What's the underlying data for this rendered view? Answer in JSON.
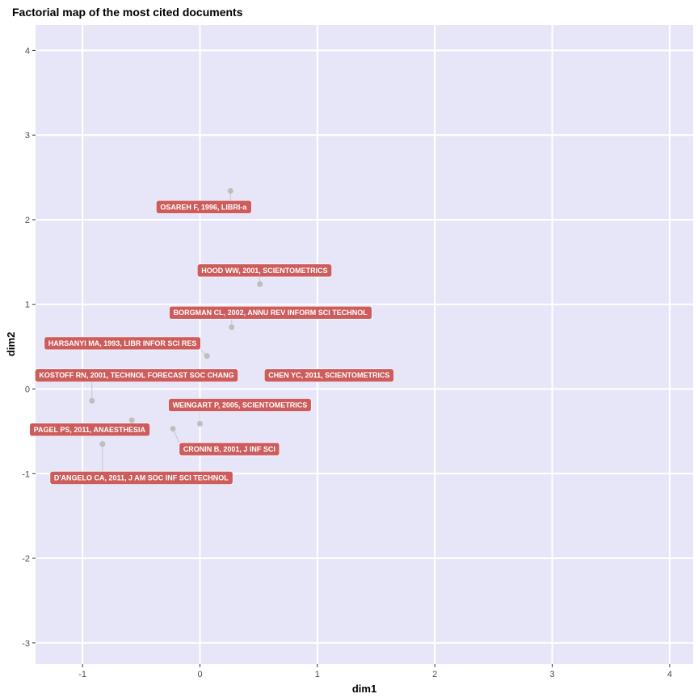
{
  "chart_data": {
    "type": "scatter",
    "title": "Factorial map of the most cited documents",
    "xlabel": "dim1",
    "ylabel": "dim2",
    "xlim": [
      -1.4,
      4.2
    ],
    "ylim": [
      -3.25,
      4.3
    ],
    "x_ticks": [
      -1,
      0,
      1,
      2,
      3,
      4
    ],
    "y_ticks": [
      -3,
      -2,
      -1,
      0,
      1,
      2,
      3,
      4
    ],
    "grid": true,
    "colors": {
      "panel": "#E6E6F8",
      "grid_major": "#FFFFFF",
      "point": "#BEBEBE",
      "label_bg": "#CD5C5C",
      "label_text": "#FFFFFF",
      "connector": "#C8C8C8"
    },
    "points": [
      {
        "label": "OSAREH F, 1996, LIBRI-a",
        "x": 0.26,
        "y": 2.34,
        "lx": 0.03,
        "ly": 2.15
      },
      {
        "label": "HOOD WW, 2001, SCIENTOMETRICS",
        "x": 0.51,
        "y": 1.24,
        "lx": 0.55,
        "ly": 1.4
      },
      {
        "label": "BORGMAN CL, 2002, ANNU REV INFORM SCI TECHNOL",
        "x": 0.27,
        "y": 0.73,
        "lx": 0.6,
        "ly": 0.9
      },
      {
        "label": "HARSANYI MA, 1993, LIBR INFOR SCI RES",
        "x": 0.06,
        "y": 0.39,
        "lx": -0.66,
        "ly": 0.54
      },
      {
        "label": "KOSTOFF RN, 2001, TECHNOL FORECAST SOC CHANG",
        "x": -0.92,
        "y": -0.14,
        "lx": -0.54,
        "ly": 0.16
      },
      {
        "label": "CHEN YC, 2011, SCIENTOMETRICS",
        "x": 0.72,
        "y": 0.16,
        "lx": 1.1,
        "ly": 0.16
      },
      {
        "label": "WEINGART P, 2005, SCIENTOMETRICS",
        "x": 0.0,
        "y": -0.41,
        "lx": 0.34,
        "ly": -0.19
      },
      {
        "label": "PAGEL PS, 2011, ANAESTHESIA",
        "x": -0.58,
        "y": -0.37,
        "lx": -0.94,
        "ly": -0.48
      },
      {
        "label": "CRONIN B, 2001, J INF SCI",
        "x": -0.23,
        "y": -0.47,
        "lx": 0.25,
        "ly": -0.71
      },
      {
        "label": "D'ANGELO CA, 2011, J AM SOC INF SCI TECHNOL",
        "x": -0.83,
        "y": -0.65,
        "lx": -0.5,
        "ly": -1.05
      }
    ]
  }
}
